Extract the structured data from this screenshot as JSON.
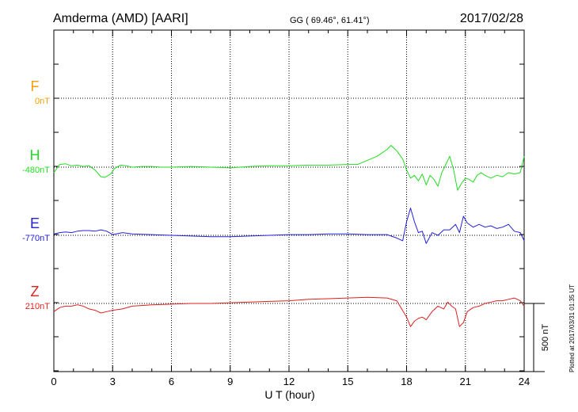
{
  "header": {
    "station": "Amderma (AMD)  [AARI]",
    "coords": "GG ( 69.46°,  61.41°)",
    "date": "2017/02/28"
  },
  "side_note": "Plotted at 2017/03/31 01:35 UT",
  "chart_data": {
    "type": "line",
    "xlabel": "U T (hour)",
    "xlim": [
      0,
      24
    ],
    "xticks": [
      0,
      3,
      6,
      9,
      12,
      15,
      18,
      21,
      24
    ],
    "scale_bar_label": "500 nT",
    "scale_bar_nT": 500,
    "series": [
      {
        "name": "F",
        "baseline_label": "0nT",
        "color": "#f0a000",
        "values": []
      },
      {
        "name": "H",
        "baseline_label": "-480nT",
        "color": "#22dd22",
        "x": [
          0,
          0.3,
          0.6,
          0.9,
          1.2,
          1.5,
          1.8,
          2.1,
          2.4,
          2.6,
          2.9,
          3.1,
          3.4,
          3.7,
          4.0,
          4.5,
          5,
          5.5,
          6,
          7,
          8,
          9,
          10,
          11,
          12,
          13,
          14,
          15,
          15.5,
          16,
          16.5,
          17,
          17.2,
          17.5,
          17.8,
          18.0,
          18.2,
          18.4,
          18.6,
          18.8,
          19.0,
          19.2,
          19.4,
          19.6,
          19.8,
          20.0,
          20.2,
          20.4,
          20.6,
          20.8,
          21.0,
          21.2,
          21.4,
          21.6,
          21.8,
          22.0,
          22.3,
          22.6,
          22.9,
          23.2,
          23.5,
          23.8,
          24.0
        ],
        "y": [
          -40,
          20,
          25,
          10,
          15,
          5,
          10,
          -20,
          -70,
          -75,
          -50,
          -10,
          15,
          10,
          0,
          5,
          5,
          0,
          0,
          5,
          0,
          -5,
          5,
          10,
          10,
          15,
          15,
          20,
          20,
          50,
          80,
          130,
          160,
          120,
          60,
          -20,
          -80,
          -60,
          -100,
          -50,
          -130,
          -60,
          -90,
          -140,
          -40,
          20,
          80,
          -20,
          -170,
          -120,
          -80,
          -90,
          -110,
          -60,
          -40,
          -60,
          -80,
          -60,
          -70,
          -40,
          -50,
          -40,
          80
        ]
      },
      {
        "name": "E",
        "baseline_label": "-770nT",
        "color": "#2222dd",
        "x": [
          0,
          0.3,
          0.6,
          0.9,
          1.2,
          1.5,
          1.8,
          2.1,
          2.4,
          2.7,
          3.0,
          3.5,
          4,
          5,
          6,
          7,
          8,
          9,
          10,
          11,
          12,
          13,
          14,
          15,
          16,
          17,
          17.5,
          17.8,
          18.0,
          18.2,
          18.4,
          18.6,
          18.8,
          19.0,
          19.3,
          19.6,
          19.9,
          20.2,
          20.5,
          20.7,
          20.9,
          21.1,
          21.4,
          21.7,
          22.0,
          22.3,
          22.6,
          22.9,
          23.2,
          23.5,
          23.8,
          24.0
        ],
        "y": [
          10,
          20,
          25,
          20,
          30,
          35,
          35,
          30,
          40,
          30,
          5,
          20,
          10,
          5,
          0,
          -5,
          -10,
          -10,
          -5,
          0,
          5,
          5,
          10,
          10,
          5,
          5,
          -20,
          -40,
          100,
          200,
          100,
          20,
          30,
          -60,
          20,
          0,
          40,
          40,
          80,
          20,
          140,
          90,
          60,
          80,
          60,
          70,
          50,
          60,
          80,
          30,
          20,
          -40
        ]
      },
      {
        "name": "Z",
        "baseline_label": "210nT",
        "color": "#dd2222",
        "x": [
          0,
          0.3,
          0.6,
          0.9,
          1.2,
          1.5,
          1.8,
          2.1,
          2.4,
          2.7,
          3.0,
          3.5,
          4,
          5,
          6,
          7,
          8,
          9,
          10,
          11,
          12,
          13,
          14,
          15,
          16,
          17,
          17.5,
          18.0,
          18.2,
          18.4,
          18.6,
          18.8,
          19.0,
          19.3,
          19.6,
          19.9,
          20.1,
          20.3,
          20.5,
          20.7,
          20.9,
          21.1,
          21.4,
          21.7,
          22.0,
          22.3,
          22.6,
          22.9,
          23.2,
          23.5,
          23.8,
          24.0
        ],
        "y": [
          -60,
          -30,
          -20,
          -20,
          -10,
          -20,
          -40,
          -50,
          -70,
          -60,
          -50,
          -40,
          -20,
          -10,
          -5,
          0,
          0,
          5,
          10,
          15,
          20,
          30,
          35,
          40,
          45,
          40,
          20,
          -100,
          -170,
          -130,
          -110,
          -100,
          -120,
          -60,
          -20,
          -40,
          10,
          -20,
          -40,
          -170,
          -140,
          -60,
          -30,
          -20,
          0,
          10,
          20,
          20,
          30,
          40,
          20,
          -20
        ]
      }
    ]
  }
}
